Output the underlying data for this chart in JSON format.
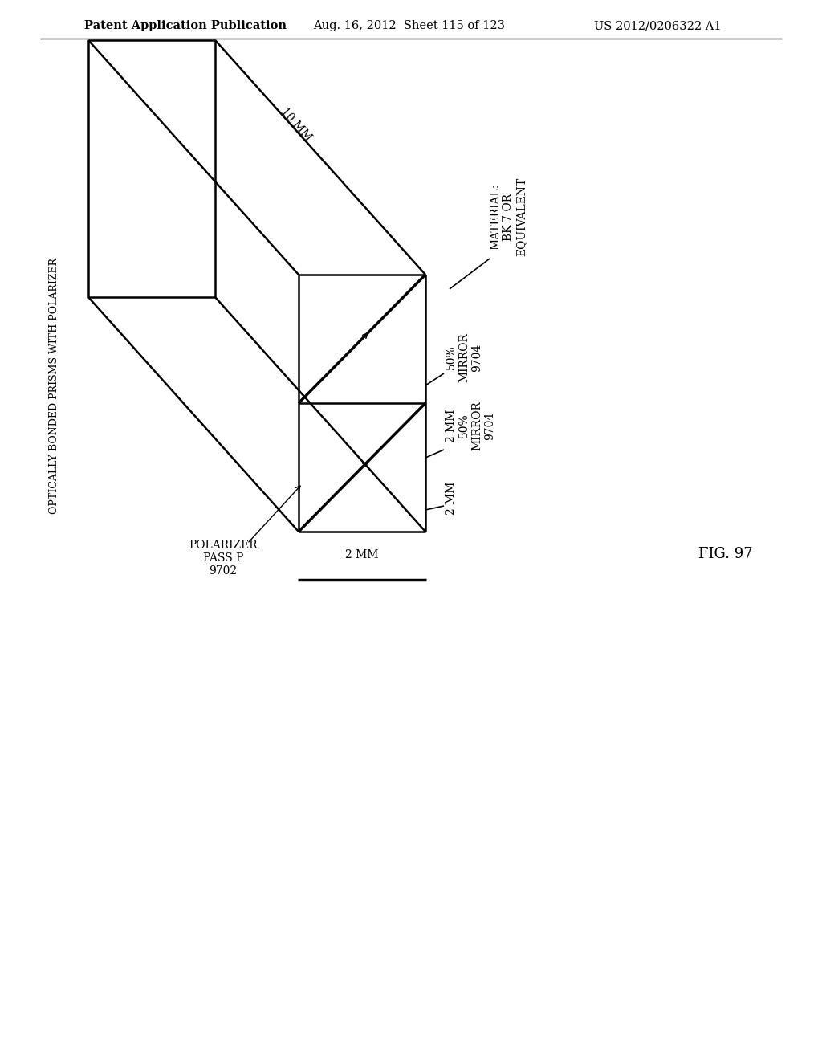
{
  "bg_color": "#ffffff",
  "line_color": "#000000",
  "header_left": "Patent Application Publication",
  "header_mid": "Aug. 16, 2012  Sheet 115 of 123",
  "header_right": "US 2012/0206322 A1",
  "fig_label": "FIG. 97",
  "side_label": "OPTICALLY BONDED PRISMS WITH POLARIZER",
  "label_10mm": "10 MM",
  "label_material": "MATERIAL:\nBK-7 OR\nEQUIVALENT",
  "label_50mirror_top": "50%\nMIRROR\n9704",
  "label_2mm_50mirror": "2 MM\n50%\nMIRROR\n9704",
  "label_2mm_right": "2 MM",
  "label_polarizer": "POLARIZER\nPASS P\n9702",
  "label_2mm_bottom": "2 MM",
  "scale_bar_label": "2 MM",
  "lw_main": 1.8,
  "lw_thin": 1.2,
  "lw_diag": 2.5,
  "lw_scale": 2.5
}
